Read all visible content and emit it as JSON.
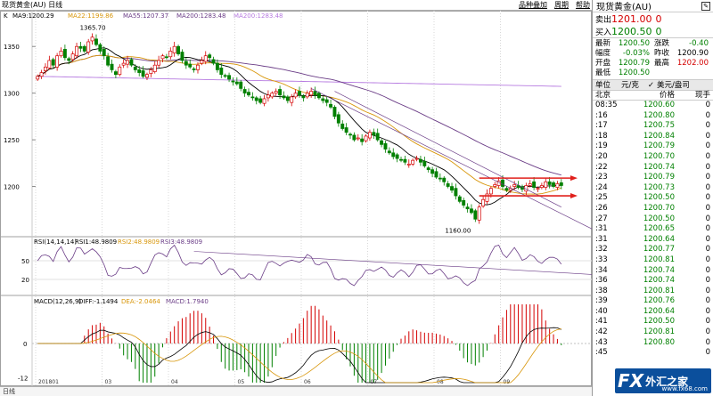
{
  "window": {
    "title": "现货黄金(AU) 日线",
    "buttons": [
      "品种叠加",
      "周期",
      "帮助"
    ]
  },
  "indicators": {
    "ma_legend": {
      "label": "K",
      "ma9": "MA9:1200.29",
      "ma22": "MA22:1199.86",
      "ma55": "MA55:1207.37",
      "ma200": "MA200:1283.48",
      "ma200b": "MA200:1283.48"
    },
    "rsi_legend": {
      "label": "RSI(14,14,14)",
      "rsi1": "RSI1:48.9809",
      "rsi2": "RSI2:48.9809",
      "rsi3": "RSI3:48.9809"
    },
    "macd_legend": {
      "label": "MACD(12,26,9)",
      "diff": "DIFF:-1.1494",
      "dea": "DEA:-2.0464",
      "macd": "MACD:1.7940"
    }
  },
  "chart_data": {
    "type": "candlestick",
    "price_axis_ticks": [
      "1350",
      "1300",
      "1250",
      "1200"
    ],
    "price_range": [
      1150,
      1375
    ],
    "high_label": "1365.70",
    "low_label": "1160.00",
    "rsi_ticks": [
      "50",
      "20"
    ],
    "macd_ticks": [
      "0",
      "-12"
    ],
    "macd_top_tick": "",
    "time_ticks": [
      "201801",
      "03",
      "04",
      "05",
      "06",
      "07",
      "08",
      "09"
    ],
    "closes": [
      1318,
      1322,
      1328,
      1335,
      1330,
      1340,
      1345,
      1338,
      1335,
      1342,
      1350,
      1348,
      1345,
      1355,
      1360,
      1352,
      1345,
      1340,
      1330,
      1325,
      1320,
      1328,
      1332,
      1335,
      1330,
      1325,
      1322,
      1318,
      1320,
      1325,
      1330,
      1335,
      1340,
      1338,
      1345,
      1350,
      1342,
      1335,
      1330,
      1328,
      1325,
      1330,
      1335,
      1340,
      1338,
      1332,
      1325,
      1320,
      1318,
      1315,
      1312,
      1310,
      1305,
      1300,
      1298,
      1295,
      1292,
      1290,
      1294,
      1298,
      1300,
      1302,
      1298,
      1295,
      1292,
      1296,
      1300,
      1298,
      1295,
      1300,
      1302,
      1298,
      1295,
      1292,
      1290,
      1285,
      1275,
      1268,
      1262,
      1258,
      1255,
      1250,
      1252,
      1248,
      1254,
      1258,
      1255,
      1250,
      1245,
      1240,
      1236,
      1232,
      1230,
      1228,
      1226,
      1224,
      1228,
      1230,
      1226,
      1222,
      1218,
      1214,
      1210,
      1208,
      1205,
      1200,
      1196,
      1190,
      1184,
      1180,
      1176,
      1172,
      1165,
      1178,
      1186,
      1192,
      1198,
      1202,
      1206,
      1200,
      1196,
      1198,
      1202,
      1199,
      1197,
      1201,
      1203,
      1199,
      1198,
      1201,
      1205,
      1202,
      1200,
      1203,
      1201
    ],
    "ma_lines": [
      "MA9",
      "MA22",
      "MA55",
      "MA200"
    ],
    "support_resistance": {
      "upper": 1209,
      "lower": 1190
    }
  },
  "bottom": {
    "mode": "日线"
  },
  "quote": {
    "title": "现货黄金(AU)",
    "sell_label": "卖出",
    "sell_value": "1201.00",
    "sell_qty": "0",
    "buy_label": "买入",
    "buy_value": "1200.50",
    "buy_qty": "0",
    "stats": [
      {
        "k": "最新",
        "v": "1200.50",
        "k2": "涨跌",
        "v2": "-0.40"
      },
      {
        "k": "幅度",
        "v": "-0.03%",
        "k2": "昨收",
        "v2": "1200.90"
      },
      {
        "k": "开盘",
        "v": "1200.79",
        "k2": "最高",
        "v2": "1202.00"
      },
      {
        "k": "最低",
        "v": "1200.50",
        "k2": "",
        "v2": ""
      }
    ],
    "unit_label": "单位",
    "unit_value": "元/克",
    "unit_option": "美元/盎司",
    "col_time": "北京",
    "col_price": "价格",
    "col_qty": "现手",
    "ticks": [
      {
        "t": "08:35",
        "p": "1200.60",
        "q": "0"
      },
      {
        "t": ":16",
        "p": "1200.80",
        "q": "0"
      },
      {
        "t": ":17",
        "p": "1200.75",
        "q": "0"
      },
      {
        "t": ":18",
        "p": "1200.84",
        "q": "0"
      },
      {
        "t": ":19",
        "p": "1200.79",
        "q": "0"
      },
      {
        "t": ":20",
        "p": "1200.70",
        "q": "0"
      },
      {
        "t": ":22",
        "p": "1200.74",
        "q": "0"
      },
      {
        "t": ":23",
        "p": "1200.79",
        "q": "0"
      },
      {
        "t": ":24",
        "p": "1200.73",
        "q": "0"
      },
      {
        "t": ":25",
        "p": "1200.50",
        "q": "0"
      },
      {
        "t": ":26",
        "p": "1200.70",
        "q": "0"
      },
      {
        "t": ":27",
        "p": "1200.50",
        "q": "0"
      },
      {
        "t": ":31",
        "p": "1200.65",
        "q": "0"
      },
      {
        "t": ":31",
        "p": "1200.64",
        "q": "0"
      },
      {
        "t": ":32",
        "p": "1200.77",
        "q": "0"
      },
      {
        "t": ":33",
        "p": "1200.81",
        "q": "0"
      },
      {
        "t": ":34",
        "p": "1200.74",
        "q": "0"
      },
      {
        "t": ":36",
        "p": "1200.74",
        "q": "0"
      },
      {
        "t": ":38",
        "p": "1200.81",
        "q": "0"
      },
      {
        "t": ":39",
        "p": "1200.76",
        "q": "0"
      },
      {
        "t": ":40",
        "p": "1200.64",
        "q": "0"
      },
      {
        "t": ":41",
        "p": "1200.50",
        "q": "0"
      },
      {
        "t": ":42",
        "p": "1200.81",
        "q": "0"
      },
      {
        "t": ":43",
        "p": "1200.80",
        "q": "0"
      },
      {
        "t": ":45",
        "p": "",
        "q": "0"
      }
    ]
  },
  "watermark": {
    "fx": "FX",
    "cn": "外汇之家",
    "url": "www.fx68.com"
  },
  "colors": {
    "up": "#d40000",
    "down": "#008000",
    "ma9": "#000000",
    "ma22": "#d8960a",
    "ma55": "#6a3c86",
    "ma200": "#b67ae0",
    "arrow": "#e0201c"
  }
}
